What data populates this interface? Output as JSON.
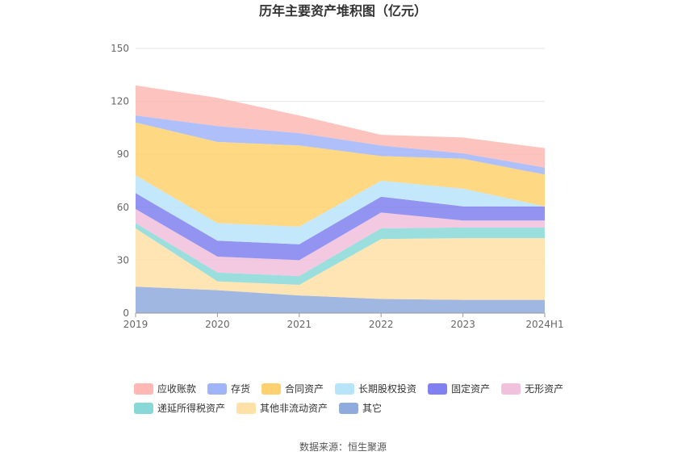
{
  "chart_data": {
    "type": "area",
    "stacked": true,
    "title": "历年主要资产堆积图（亿元）",
    "source": "数据来源：恒生聚源",
    "categories": [
      "2019",
      "2020",
      "2021",
      "2022",
      "2023",
      "2024H1"
    ],
    "ylim": [
      0,
      150
    ],
    "yticks": [
      "0",
      "30",
      "60",
      "90",
      "120",
      "150"
    ],
    "grid": true,
    "legend_position": "bottom",
    "series": [
      {
        "name": "其它",
        "color": "#8faadc",
        "values": [
          15,
          13,
          10,
          8,
          7.5,
          7.5
        ]
      },
      {
        "name": "其他非流动资产",
        "color": "#ffe0a6",
        "values": [
          33,
          5,
          6,
          34,
          35,
          35
        ]
      },
      {
        "name": "递延所得税资产",
        "color": "#88d8d8",
        "values": [
          3,
          5,
          5,
          6,
          6,
          6
        ]
      },
      {
        "name": "无形资产",
        "color": "#f0c0dc",
        "values": [
          8,
          9,
          9,
          9,
          4,
          4
        ]
      },
      {
        "name": "固定资产",
        "color": "#8080f0",
        "values": [
          9,
          9,
          9,
          9,
          8,
          8
        ]
      },
      {
        "name": "长期股权投资",
        "color": "#b8e4fa",
        "values": [
          10,
          10,
          10,
          9,
          10,
          0
        ]
      },
      {
        "name": "合同资产",
        "color": "#ffd16e",
        "values": [
          30,
          46,
          46,
          14,
          17,
          18
        ]
      },
      {
        "name": "存货",
        "color": "#a0b4f8",
        "values": [
          4,
          9,
          7,
          6,
          3,
          4
        ]
      },
      {
        "name": "应收账款",
        "color": "#fdb8b4",
        "values": [
          17,
          16,
          10,
          6,
          9,
          11
        ]
      }
    ],
    "legend_order": [
      "应收账款",
      "存货",
      "合同资产",
      "长期股权投资",
      "固定资产",
      "无形资产",
      "递延所得税资产",
      "其他非流动资产",
      "其它"
    ]
  }
}
